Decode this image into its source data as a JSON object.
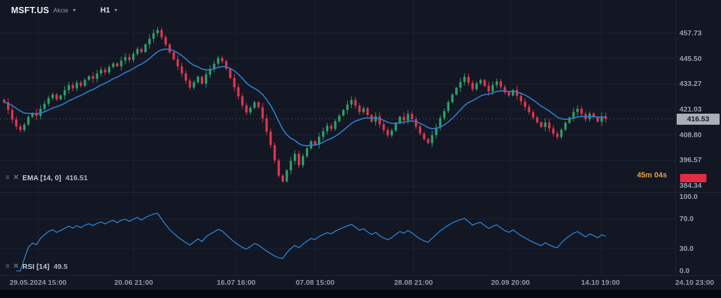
{
  "header": {
    "symbol": "MSFT.US",
    "asset_type": "Akcie",
    "timeframe": "H1"
  },
  "indicators": {
    "ema_label": "EMA [14, 0]",
    "ema_value": "416.51",
    "rsi_label": "RSI [14]",
    "rsi_value": "49.5"
  },
  "countdown": "45m 04s",
  "price_axis": {
    "labels": [
      "457.73",
      "445.50",
      "433.27",
      "421.03",
      "408.80",
      "396.57",
      "384.34"
    ],
    "current_price": "416.53"
  },
  "rsi_axis": {
    "labels": [
      "100.0",
      "70.0",
      "30.0",
      "0.0"
    ]
  },
  "time_axis": {
    "labels": [
      "29.05.2024 15:00",
      "20.06 21:00",
      "16.07 16:00",
      "07.08 15:00",
      "28.08 21:00",
      "20.09 20:00",
      "14.10 19:00",
      "24.10 23:00"
    ]
  },
  "colors": {
    "background": "#121723",
    "grid": "#1b2230",
    "bull": "#2f9e6a",
    "bear": "#df3550",
    "ema_line": "#2f7fd6",
    "rsi_line": "#2e86d9",
    "axis_text": "#97a0af",
    "countdown": "#e6a23c",
    "last_price_badge_bg": "#a9afb9",
    "last_price_badge_text": "#161b26",
    "red_badge": "#e32b45",
    "last_price_line": "#6d7787"
  },
  "chart_data": {
    "type": "candlestick",
    "symbol": "MSFT.US",
    "timeframe": "H1",
    "price_range": [
      384.34,
      457.73
    ],
    "price_ticks": [
      457.73,
      445.5,
      433.27,
      421.03,
      408.8,
      396.57,
      384.34
    ],
    "time_ticks": [
      "29.05.2024 15:00",
      "20.06 21:00",
      "16.07 16:00",
      "07.08 15:00",
      "28.08 21:00",
      "20.09 20:00",
      "14.10 19:00",
      "24.10 23:00"
    ],
    "open_first": 425.8,
    "closes": [
      424.5,
      420.8,
      416.2,
      412.9,
      411.2,
      413.8,
      417.5,
      419.2,
      418.0,
      421.4,
      423.8,
      426.5,
      428.2,
      425.9,
      427.8,
      430.4,
      432.8,
      431.2,
      434.0,
      432.5,
      435.3,
      437.1,
      435.8,
      438.4,
      440.2,
      438.9,
      441.5,
      443.2,
      441.8,
      444.6,
      446.3,
      444.9,
      447.8,
      450.2,
      448.7,
      452.4,
      455.1,
      457.8,
      459.3,
      455.9,
      452.3,
      448.6,
      445.2,
      441.8,
      438.4,
      434.9,
      431.6,
      434.2,
      436.8,
      433.5,
      437.9,
      440.6,
      443.1,
      445.8,
      444.3,
      440.7,
      436.2,
      431.8,
      427.4,
      423.0,
      419.6,
      421.9,
      424.5,
      422.1,
      416.8,
      410.4,
      403.9,
      396.5,
      389.2,
      386.4,
      391.8,
      396.3,
      399.7,
      394.2,
      398.6,
      402.3,
      405.8,
      404.1,
      407.9,
      410.6,
      413.2,
      411.7,
      415.4,
      418.1,
      420.8,
      423.4,
      425.6,
      422.9,
      419.8,
      421.6,
      418.4,
      415.2,
      417.8,
      413.9,
      411.2,
      408.6,
      410.9,
      414.3,
      417.6,
      415.8,
      418.9,
      416.4,
      412.8,
      409.5,
      406.8,
      404.9,
      408.7,
      412.4,
      416.9,
      420.3,
      424.6,
      428.2,
      431.5,
      434.3,
      436.7,
      433.9,
      430.8,
      433.6,
      435.2,
      432.4,
      429.7,
      432.8,
      434.6,
      431.9,
      429.3,
      427.8,
      430.4,
      427.6,
      424.9,
      422.3,
      419.8,
      417.2,
      414.9,
      412.6,
      414.8,
      411.9,
      409.4,
      407.8,
      411.3,
      414.6,
      417.2,
      419.8,
      421.4,
      418.9,
      416.3,
      419.1,
      417.5,
      415.2,
      417.8,
      416.53
    ],
    "last_price": 416.53,
    "overlays": [
      {
        "name": "EMA",
        "period": 14,
        "shift": 0,
        "last_value": 416.51,
        "color": "#2f7fd6"
      }
    ],
    "lower_panel": {
      "name": "RSI",
      "period": 14,
      "last_value": 49.5,
      "range": [
        0,
        100
      ],
      "ticks": [
        100.0,
        70.0,
        30.0,
        0.0
      ],
      "color": "#2e86d9"
    }
  }
}
